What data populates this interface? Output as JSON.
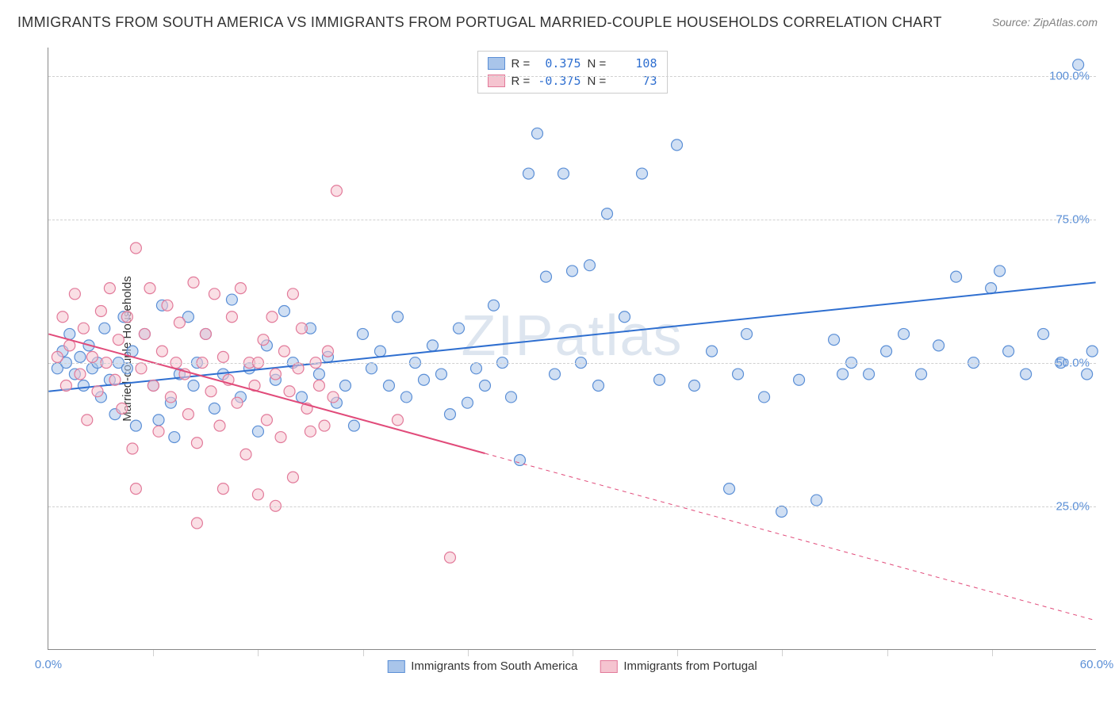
{
  "title": "IMMIGRANTS FROM SOUTH AMERICA VS IMMIGRANTS FROM PORTUGAL MARRIED-COUPLE HOUSEHOLDS CORRELATION CHART",
  "source": "Source: ZipAtlas.com",
  "y_label": "Married-couple Households",
  "watermark": "ZIPatlas",
  "chart": {
    "type": "scatter",
    "xlim": [
      0,
      60
    ],
    "ylim": [
      0,
      105
    ],
    "x_ticks": [
      0,
      60
    ],
    "x_tick_labels": [
      "0.0%",
      "60.0%"
    ],
    "y_ticks": [
      25,
      50,
      75,
      100
    ],
    "y_tick_labels": [
      "25.0%",
      "50.0%",
      "75.0%",
      "100.0%"
    ],
    "x_minor_grid": [
      6,
      12,
      18,
      24,
      30,
      36,
      42,
      48,
      54
    ],
    "background_color": "#ffffff",
    "grid_color": "#d0d0d0",
    "axis_color": "#888888",
    "tick_label_color": "#5b8fd6",
    "marker_radius": 7,
    "marker_opacity": 0.55,
    "marker_stroke_width": 1.2,
    "series": [
      {
        "name": "Immigrants from South America",
        "color_fill": "#a9c5ea",
        "color_stroke": "#5b8fd6",
        "R": "0.375",
        "N": "108",
        "trend": {
          "x1": 0,
          "y1": 45,
          "x2": 60,
          "y2": 64,
          "solid_until_x": 60,
          "color": "#2f6fd0",
          "width": 2
        },
        "points": [
          [
            0.5,
            49
          ],
          [
            0.8,
            52
          ],
          [
            1.0,
            50
          ],
          [
            1.2,
            55
          ],
          [
            1.5,
            48
          ],
          [
            1.8,
            51
          ],
          [
            2.0,
            46
          ],
          [
            2.3,
            53
          ],
          [
            2.5,
            49
          ],
          [
            2.8,
            50
          ],
          [
            3.0,
            44
          ],
          [
            3.2,
            56
          ],
          [
            3.5,
            47
          ],
          [
            3.8,
            41
          ],
          [
            4.0,
            50
          ],
          [
            4.3,
            58
          ],
          [
            4.5,
            49
          ],
          [
            4.8,
            52
          ],
          [
            5.0,
            39
          ],
          [
            5.5,
            55
          ],
          [
            6.0,
            46
          ],
          [
            6.3,
            40
          ],
          [
            6.5,
            60
          ],
          [
            7.0,
            43
          ],
          [
            7.2,
            37
          ],
          [
            7.5,
            48
          ],
          [
            8.0,
            58
          ],
          [
            8.3,
            46
          ],
          [
            8.5,
            50
          ],
          [
            9.0,
            55
          ],
          [
            9.5,
            42
          ],
          [
            10.0,
            48
          ],
          [
            10.5,
            61
          ],
          [
            11.0,
            44
          ],
          [
            11.5,
            49
          ],
          [
            12.0,
            38
          ],
          [
            12.5,
            53
          ],
          [
            13.0,
            47
          ],
          [
            13.5,
            59
          ],
          [
            14.0,
            50
          ],
          [
            14.5,
            44
          ],
          [
            15.0,
            56
          ],
          [
            15.5,
            48
          ],
          [
            16.0,
            51
          ],
          [
            16.5,
            43
          ],
          [
            17.0,
            46
          ],
          [
            17.5,
            39
          ],
          [
            18.0,
            55
          ],
          [
            18.5,
            49
          ],
          [
            19.0,
            52
          ],
          [
            19.5,
            46
          ],
          [
            20.0,
            58
          ],
          [
            20.5,
            44
          ],
          [
            21.0,
            50
          ],
          [
            21.5,
            47
          ],
          [
            22.0,
            53
          ],
          [
            22.5,
            48
          ],
          [
            23.0,
            41
          ],
          [
            23.5,
            56
          ],
          [
            24.0,
            43
          ],
          [
            24.5,
            49
          ],
          [
            25.0,
            46
          ],
          [
            25.5,
            60
          ],
          [
            26.0,
            50
          ],
          [
            26.5,
            44
          ],
          [
            27.0,
            33
          ],
          [
            27.5,
            83
          ],
          [
            28.0,
            90
          ],
          [
            28.5,
            65
          ],
          [
            29.0,
            48
          ],
          [
            29.5,
            83
          ],
          [
            30.0,
            66
          ],
          [
            30.5,
            50
          ],
          [
            31.0,
            67
          ],
          [
            31.5,
            46
          ],
          [
            32.0,
            76
          ],
          [
            33.0,
            58
          ],
          [
            34.0,
            83
          ],
          [
            35.0,
            47
          ],
          [
            36.0,
            88
          ],
          [
            37.0,
            46
          ],
          [
            38.0,
            52
          ],
          [
            39.0,
            28
          ],
          [
            39.5,
            48
          ],
          [
            40.0,
            55
          ],
          [
            41.0,
            44
          ],
          [
            42.0,
            24
          ],
          [
            43.0,
            47
          ],
          [
            44.0,
            26
          ],
          [
            45.0,
            54
          ],
          [
            46.0,
            50
          ],
          [
            47.0,
            48
          ],
          [
            48.0,
            52
          ],
          [
            49.0,
            55
          ],
          [
            50.0,
            48
          ],
          [
            51.0,
            53
          ],
          [
            52.0,
            65
          ],
          [
            53.0,
            50
          ],
          [
            54.0,
            63
          ],
          [
            55.0,
            52
          ],
          [
            56.0,
            48
          ],
          [
            57.0,
            55
          ],
          [
            58.0,
            50
          ],
          [
            59.0,
            102
          ],
          [
            59.5,
            48
          ],
          [
            59.8,
            52
          ],
          [
            54.5,
            66
          ],
          [
            45.5,
            48
          ]
        ]
      },
      {
        "name": "Immigrants from Portugal",
        "color_fill": "#f5c4d0",
        "color_stroke": "#e27a9a",
        "R": "-0.375",
        "N": "73",
        "trend": {
          "x1": 0,
          "y1": 55,
          "x2": 60,
          "y2": 5,
          "solid_until_x": 25,
          "color": "#e14b7a",
          "width": 2
        },
        "points": [
          [
            0.5,
            51
          ],
          [
            0.8,
            58
          ],
          [
            1.0,
            46
          ],
          [
            1.2,
            53
          ],
          [
            1.5,
            62
          ],
          [
            1.8,
            48
          ],
          [
            2.0,
            56
          ],
          [
            2.2,
            40
          ],
          [
            2.5,
            51
          ],
          [
            2.8,
            45
          ],
          [
            3.0,
            59
          ],
          [
            3.3,
            50
          ],
          [
            3.5,
            63
          ],
          [
            3.8,
            47
          ],
          [
            4.0,
            54
          ],
          [
            4.2,
            42
          ],
          [
            4.5,
            58
          ],
          [
            4.8,
            35
          ],
          [
            5.0,
            70
          ],
          [
            5.3,
            49
          ],
          [
            5.5,
            55
          ],
          [
            5.8,
            63
          ],
          [
            6.0,
            46
          ],
          [
            6.3,
            38
          ],
          [
            6.5,
            52
          ],
          [
            6.8,
            60
          ],
          [
            7.0,
            44
          ],
          [
            7.3,
            50
          ],
          [
            7.5,
            57
          ],
          [
            7.8,
            48
          ],
          [
            8.0,
            41
          ],
          [
            8.3,
            64
          ],
          [
            8.5,
            36
          ],
          [
            8.8,
            50
          ],
          [
            9.0,
            55
          ],
          [
            9.3,
            45
          ],
          [
            9.5,
            62
          ],
          [
            9.8,
            39
          ],
          [
            10.0,
            51
          ],
          [
            10.3,
            47
          ],
          [
            10.5,
            58
          ],
          [
            10.8,
            43
          ],
          [
            11.0,
            63
          ],
          [
            11.3,
            34
          ],
          [
            11.5,
            50
          ],
          [
            11.8,
            46
          ],
          [
            12.0,
            27
          ],
          [
            12.3,
            54
          ],
          [
            12.5,
            40
          ],
          [
            12.8,
            58
          ],
          [
            13.0,
            48
          ],
          [
            13.3,
            37
          ],
          [
            13.5,
            52
          ],
          [
            13.8,
            45
          ],
          [
            14.0,
            30
          ],
          [
            14.3,
            49
          ],
          [
            14.5,
            56
          ],
          [
            14.8,
            42
          ],
          [
            15.0,
            38
          ],
          [
            15.3,
            50
          ],
          [
            15.5,
            46
          ],
          [
            15.8,
            39
          ],
          [
            16.0,
            52
          ],
          [
            16.3,
            44
          ],
          [
            8.5,
            22
          ],
          [
            16.5,
            80
          ],
          [
            5.0,
            28
          ],
          [
            10.0,
            28
          ],
          [
            13.0,
            25
          ],
          [
            20.0,
            40
          ],
          [
            14.0,
            62
          ],
          [
            12.0,
            50
          ],
          [
            23.0,
            16
          ]
        ]
      }
    ]
  },
  "colors": {
    "title": "#333333",
    "source": "#808080",
    "stat_r_blue": "#2f6fd0",
    "stat_r_pink": "#e14b7a"
  },
  "fontsize": {
    "title": 18,
    "labels": 15,
    "ticks": 15,
    "watermark": 72
  }
}
